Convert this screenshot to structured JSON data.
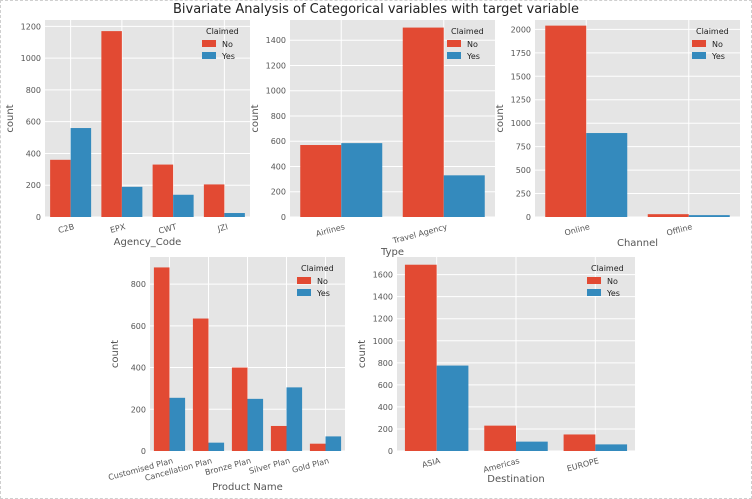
{
  "title": "Bivariate Analysis of Categorical variables with target variable",
  "colors": {
    "No": "#e24a33",
    "Yes": "#348abd",
    "panel": "#e5e5e5",
    "grid": "#ffffff"
  },
  "chart_data": [
    {
      "type": "bar",
      "categories": [
        "C2B",
        "EPX",
        "CWT",
        "JZI"
      ],
      "series": [
        {
          "name": "No",
          "values": [
            360,
            1170,
            330,
            205
          ]
        },
        {
          "name": "Yes",
          "values": [
            560,
            190,
            140,
            25
          ]
        }
      ],
      "xlabel": "Agency_Code",
      "ylabel": "count",
      "ylim": [
        0,
        1240
      ],
      "yticks": [
        0,
        200,
        400,
        600,
        800,
        1000,
        1200
      ],
      "legend": {
        "title": "Claimed",
        "entries": [
          "No",
          "Yes"
        ],
        "placement": "top-right"
      },
      "grid": true
    },
    {
      "type": "bar",
      "categories": [
        "Airlines",
        "Travel Agency"
      ],
      "series": [
        {
          "name": "No",
          "values": [
            570,
            1500
          ]
        },
        {
          "name": "Yes",
          "values": [
            585,
            330
          ]
        }
      ],
      "xlabel": "Type",
      "ylabel": "count",
      "ylim": [
        0,
        1560
      ],
      "yticks": [
        0,
        200,
        400,
        600,
        800,
        1000,
        1200,
        1400
      ],
      "legend": {
        "title": "Claimed",
        "entries": [
          "No",
          "Yes"
        ],
        "placement": "top-right"
      },
      "grid": true
    },
    {
      "type": "bar",
      "categories": [
        "Online",
        "Offline"
      ],
      "series": [
        {
          "name": "No",
          "values": [
            2040,
            30
          ]
        },
        {
          "name": "Yes",
          "values": [
            895,
            20
          ]
        }
      ],
      "xlabel": "Channel",
      "ylabel": "count",
      "ylim": [
        0,
        2100
      ],
      "yticks": [
        0,
        250,
        500,
        750,
        1000,
        1250,
        1500,
        1750,
        2000
      ],
      "legend": {
        "title": "Claimed",
        "entries": [
          "No",
          "Yes"
        ],
        "placement": "top-right"
      },
      "grid": true
    },
    {
      "type": "bar",
      "categories": [
        "Customised Plan",
        "Cancellation Plan",
        "Bronze Plan",
        "Silver Plan",
        "Gold Plan"
      ],
      "series": [
        {
          "name": "No",
          "values": [
            880,
            635,
            400,
            120,
            35
          ]
        },
        {
          "name": "Yes",
          "values": [
            255,
            40,
            250,
            305,
            70
          ]
        }
      ],
      "xlabel": "Product Name",
      "ylabel": "count",
      "ylim": [
        0,
        930
      ],
      "yticks": [
        0,
        200,
        400,
        600,
        800
      ],
      "legend": {
        "title": "Claimed",
        "entries": [
          "No",
          "Yes"
        ],
        "placement": "top-right"
      },
      "grid": true
    },
    {
      "type": "bar",
      "categories": [
        "ASIA",
        "Americas",
        "EUROPE"
      ],
      "series": [
        {
          "name": "No",
          "values": [
            1690,
            230,
            150
          ]
        },
        {
          "name": "Yes",
          "values": [
            775,
            85,
            60
          ]
        }
      ],
      "xlabel": "Destination",
      "ylabel": "count",
      "ylim": [
        0,
        1760
      ],
      "yticks": [
        0,
        200,
        400,
        600,
        800,
        1000,
        1200,
        1400,
        1600
      ],
      "legend": {
        "title": "Claimed",
        "entries": [
          "No",
          "Yes"
        ],
        "placement": "top-right"
      },
      "grid": true
    }
  ]
}
